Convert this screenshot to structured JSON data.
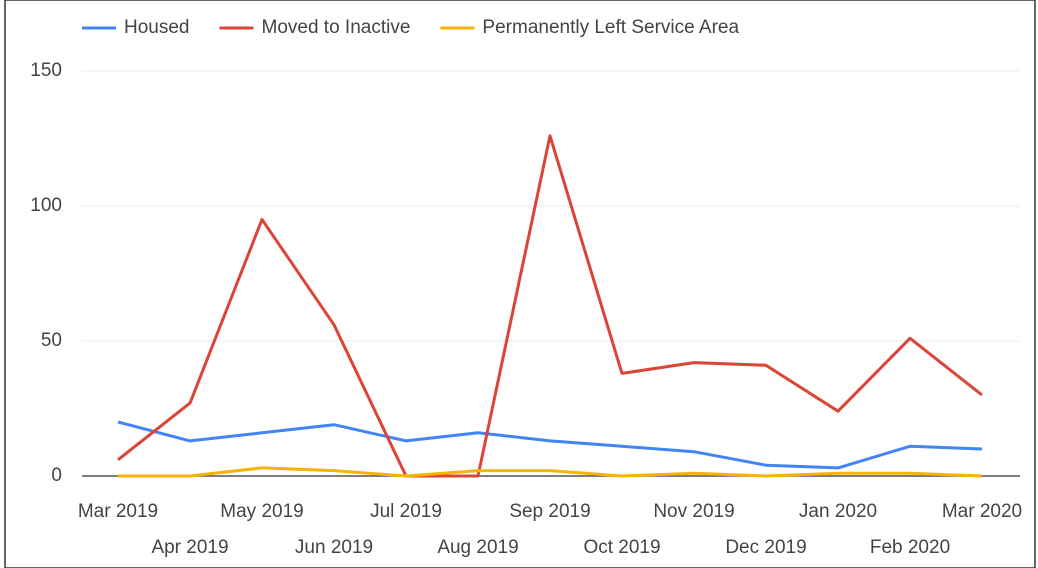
{
  "chart_data": {
    "type": "line",
    "categories": [
      "Mar 2019",
      "Apr 2019",
      "May 2019",
      "Jun 2019",
      "Jul 2019",
      "Aug 2019",
      "Sep 2019",
      "Oct 2019",
      "Nov 2019",
      "Dec 2019",
      "Jan 2020",
      "Feb 2020",
      "Mar 2020"
    ],
    "series": [
      {
        "name": "Housed",
        "color": "#4285f4",
        "values": [
          20,
          13,
          16,
          19,
          13,
          16,
          13,
          11,
          9,
          4,
          3,
          11,
          10
        ]
      },
      {
        "name": "Moved to Inactive",
        "color": "#db4437",
        "values": [
          6,
          27,
          95,
          56,
          0,
          0,
          126,
          38,
          42,
          41,
          24,
          51,
          30
        ]
      },
      {
        "name": "Permanently Left Service Area",
        "color": "#f4b400",
        "values": [
          0,
          0,
          3,
          2,
          0,
          2,
          2,
          0,
          1,
          0,
          1,
          1,
          0
        ]
      }
    ],
    "ylim": [
      0,
      150
    ],
    "yticks": [
      0,
      50,
      100,
      150
    ],
    "grid": true,
    "legend": "top"
  }
}
